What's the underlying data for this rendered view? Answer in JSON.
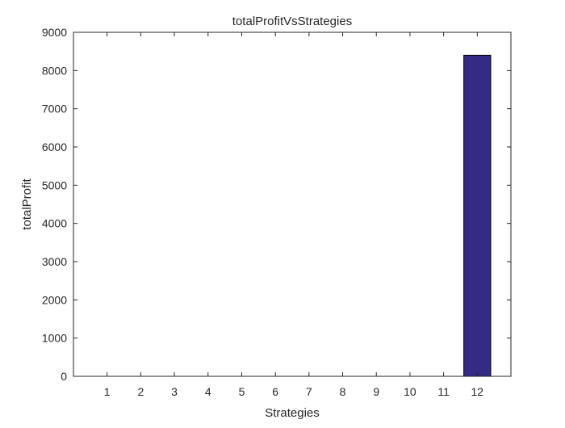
{
  "chart_data": {
    "type": "bar",
    "title": "totalProfitVsStrategies",
    "xlabel": "Strategies",
    "ylabel": "totalProfit",
    "categories": [
      "1",
      "2",
      "3",
      "4",
      "5",
      "6",
      "7",
      "8",
      "9",
      "10",
      "11",
      "12"
    ],
    "values": [
      0,
      0,
      0,
      0,
      0,
      0,
      0,
      0,
      0,
      0,
      0,
      8400
    ],
    "ylim": [
      0,
      9000
    ],
    "xlim": [
      0,
      13
    ],
    "yticks": [
      0,
      1000,
      2000,
      3000,
      4000,
      5000,
      6000,
      7000,
      8000,
      9000
    ],
    "grid": false,
    "bar_color": "#342B85",
    "bar_edge_color": "#000000",
    "axis_color": "#262626"
  }
}
